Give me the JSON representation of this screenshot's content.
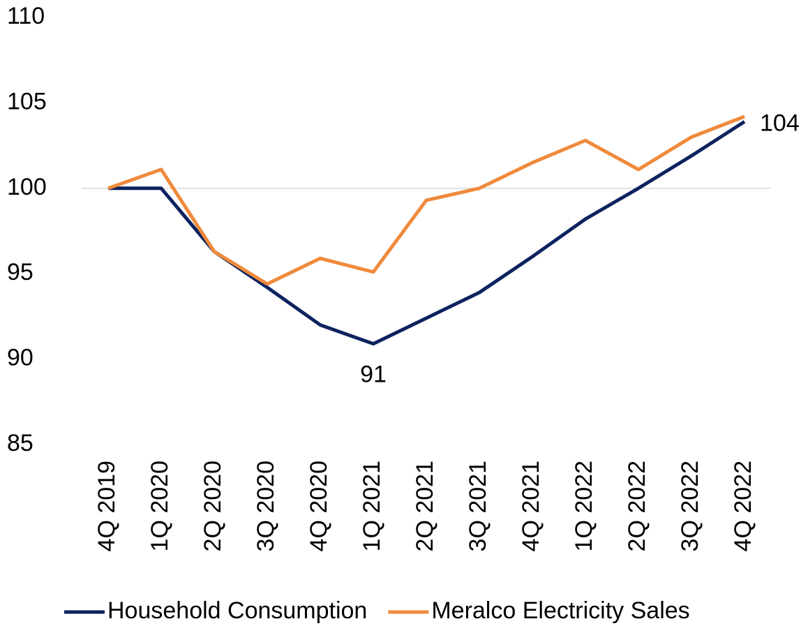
{
  "chart_data": {
    "type": "line",
    "categories": [
      "4Q 2019",
      "1Q 2020",
      "2Q 2020",
      "3Q 2020",
      "4Q 2020",
      "1Q 2021",
      "2Q 2021",
      "3Q 2021",
      "4Q 2021",
      "1Q 2022",
      "2Q 2022",
      "3Q 2022",
      "4Q 2022"
    ],
    "series": [
      {
        "name": "Household Consumption",
        "color": "#0d2360",
        "values": [
          100,
          100,
          96.3,
          94.2,
          92.0,
          90.9,
          92.4,
          93.9,
          96.0,
          98.2,
          100.0,
          101.9,
          103.9
        ],
        "value_labels": [
          null,
          null,
          null,
          null,
          null,
          "91",
          null,
          null,
          null,
          null,
          null,
          null,
          "104"
        ]
      },
      {
        "name": "Meralco Electricity Sales",
        "color": "#ef8a3c",
        "values": [
          100,
          101.1,
          96.3,
          94.4,
          95.9,
          95.1,
          99.3,
          100.0,
          101.5,
          102.8,
          101.1,
          103.0,
          104.2
        ]
      }
    ],
    "ylim": [
      85,
      110
    ],
    "yticks": [
      85,
      90,
      95,
      100,
      105,
      110
    ],
    "reference_line": 100,
    "legend": "bottom"
  }
}
